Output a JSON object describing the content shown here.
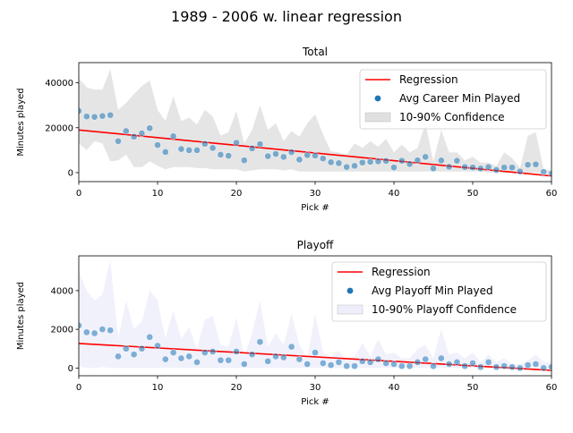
{
  "suptitle": "1989 - 2006 w. linear regression",
  "chart_data": [
    {
      "type": "scatter",
      "title": "Total",
      "xlabel": "Pick #",
      "ylabel": "Minutes played",
      "xlim": [
        0,
        60
      ],
      "ylim": [
        -4000,
        49000
      ],
      "xticks": [
        0,
        10,
        20,
        30,
        40,
        50,
        60
      ],
      "yticks": [
        0,
        20000,
        40000
      ],
      "ytick_labels": [
        "0",
        "20000",
        "40000"
      ],
      "grid": false,
      "legend_position": "upper-right",
      "colors": {
        "regression": "#ff0000",
        "points": "#1f77b4",
        "band": "#cccccc"
      },
      "regression": {
        "name": "Regression",
        "x": [
          0,
          60
        ],
        "y": [
          19000,
          -1500
        ]
      },
      "series": [
        {
          "name": "Avg Career Min Played",
          "x": [
            0,
            1,
            2,
            3,
            4,
            5,
            6,
            7,
            8,
            9,
            10,
            11,
            12,
            13,
            14,
            15,
            16,
            17,
            18,
            19,
            20,
            21,
            22,
            23,
            24,
            25,
            26,
            27,
            28,
            29,
            30,
            31,
            32,
            33,
            34,
            35,
            36,
            37,
            38,
            39,
            40,
            41,
            42,
            43,
            44,
            45,
            46,
            47,
            48,
            49,
            50,
            51,
            52,
            53,
            54,
            55,
            56,
            57,
            58,
            59,
            60
          ],
          "y": [
            27500,
            25000,
            24800,
            25200,
            25600,
            14000,
            18500,
            16000,
            17500,
            19800,
            12300,
            9200,
            16200,
            10500,
            10000,
            10000,
            12800,
            11000,
            8000,
            7500,
            13300,
            5500,
            10800,
            12700,
            7300,
            8300,
            7000,
            9100,
            5800,
            7800,
            7600,
            6300,
            4600,
            4200,
            2500,
            3000,
            4500,
            4800,
            5000,
            5200,
            2300,
            5300,
            3800,
            5500,
            7000,
            1900,
            5400,
            2600,
            5300,
            2500,
            2300,
            1800,
            2500,
            1200,
            2300,
            2300,
            500,
            3500,
            3700,
            300,
            -500
          ]
        }
      ],
      "band": {
        "name": "10-90% Confidence",
        "x": [
          0,
          1,
          2,
          3,
          4,
          5,
          6,
          7,
          8,
          9,
          10,
          11,
          12,
          13,
          14,
          15,
          16,
          17,
          18,
          19,
          20,
          21,
          22,
          23,
          24,
          25,
          26,
          27,
          28,
          29,
          30,
          31,
          32,
          33,
          34,
          35,
          36,
          37,
          38,
          39,
          40,
          41,
          42,
          43,
          44,
          45,
          46,
          47,
          48,
          49,
          50,
          51,
          52,
          53,
          54,
          55,
          56,
          57,
          58,
          59,
          60
        ],
        "upper": [
          42000,
          38000,
          37000,
          37000,
          46000,
          28000,
          31000,
          35000,
          38500,
          41000,
          28000,
          23000,
          34000,
          23000,
          24500,
          21500,
          28000,
          25000,
          16500,
          18000,
          27500,
          13000,
          19000,
          30000,
          19000,
          22000,
          14000,
          18500,
          16000,
          22000,
          26000,
          17000,
          9500,
          9000,
          8000,
          13000,
          11000,
          14000,
          11500,
          15000,
          9000,
          12500,
          9000,
          11000,
          22000,
          5000,
          19000,
          9000,
          9000,
          5500,
          7000,
          4500,
          4500,
          3000,
          9000,
          6500,
          2000,
          16500,
          18000,
          1500,
          1000
        ],
        "lower": [
          13000,
          10000,
          14000,
          13000,
          5000,
          5500,
          8000,
          2500,
          2500,
          5000,
          3000,
          1500,
          2500,
          2500,
          2500,
          2000,
          2000,
          1500,
          1500,
          1500,
          1500,
          500,
          1000,
          1500,
          1500,
          1500,
          1000,
          1500,
          500,
          500,
          500,
          500,
          500,
          500,
          500,
          500,
          500,
          500,
          500,
          500,
          500,
          500,
          500,
          500,
          500,
          500,
          500,
          500,
          500,
          500,
          500,
          500,
          0,
          0,
          0,
          0,
          0,
          0,
          0,
          0,
          -500
        ]
      }
    },
    {
      "type": "scatter",
      "title": "Playoff",
      "xlabel": "Pick #",
      "ylabel": "Minutes played",
      "xlim": [
        0,
        60
      ],
      "ylim": [
        -400,
        5800
      ],
      "xticks": [
        0,
        10,
        20,
        30,
        40,
        50,
        60
      ],
      "yticks": [
        0,
        2000,
        4000
      ],
      "ytick_labels": [
        "0",
        "2000",
        "4000"
      ],
      "grid": false,
      "legend_position": "upper-right",
      "colors": {
        "regression": "#ff0000",
        "points": "#1f77b4",
        "band": "#e0e0f8"
      },
      "regression": {
        "name": "Regression",
        "x": [
          0,
          60
        ],
        "y": [
          1270,
          -120
        ]
      },
      "series": [
        {
          "name": "Avg Playoff Min Played",
          "x": [
            0,
            1,
            2,
            3,
            4,
            5,
            6,
            7,
            8,
            9,
            10,
            11,
            12,
            13,
            14,
            15,
            16,
            17,
            18,
            19,
            20,
            21,
            22,
            23,
            24,
            25,
            26,
            27,
            28,
            29,
            30,
            31,
            32,
            33,
            34,
            35,
            36,
            37,
            38,
            39,
            40,
            41,
            42,
            43,
            44,
            45,
            46,
            47,
            48,
            49,
            50,
            51,
            52,
            53,
            54,
            55,
            56,
            57,
            58,
            59,
            60
          ],
          "y": [
            2200,
            1850,
            1800,
            2000,
            1950,
            600,
            1000,
            700,
            1000,
            1600,
            1150,
            450,
            800,
            500,
            600,
            300,
            800,
            850,
            400,
            400,
            850,
            200,
            700,
            1350,
            350,
            600,
            550,
            1100,
            450,
            200,
            800,
            250,
            150,
            300,
            100,
            100,
            350,
            300,
            450,
            250,
            200,
            100,
            100,
            300,
            450,
            100,
            500,
            200,
            300,
            100,
            250,
            50,
            300,
            50,
            100,
            50,
            0,
            150,
            200,
            0,
            50
          ]
        }
      ],
      "band": {
        "name": "10-90% Playoff Confidence",
        "x": [
          0,
          1,
          2,
          3,
          4,
          5,
          6,
          7,
          8,
          9,
          10,
          11,
          12,
          13,
          14,
          15,
          16,
          17,
          18,
          19,
          20,
          21,
          22,
          23,
          24,
          25,
          26,
          27,
          28,
          29,
          30,
          31,
          32,
          33,
          34,
          35,
          36,
          37,
          38,
          39,
          40,
          41,
          42,
          43,
          44,
          45,
          46,
          47,
          48,
          49,
          50,
          51,
          52,
          53,
          54,
          55,
          56,
          57,
          58,
          59,
          60
        ],
        "upper": [
          5000,
          4000,
          3500,
          3800,
          5600,
          1500,
          3500,
          2000,
          2400,
          4000,
          3500,
          1500,
          3000,
          1500,
          2100,
          1000,
          2500,
          2700,
          1200,
          1100,
          2600,
          600,
          1800,
          3500,
          1100,
          1800,
          1200,
          2800,
          1200,
          500,
          2800,
          800,
          600,
          900,
          400,
          600,
          1300,
          600,
          1500,
          700,
          800,
          500,
          500,
          1000,
          1200,
          500,
          2000,
          700,
          800,
          500,
          800,
          300,
          700,
          300,
          500,
          200,
          200,
          400,
          700,
          300,
          300
        ],
        "lower": [
          100,
          0,
          0,
          50,
          0,
          0,
          0,
          0,
          0,
          0,
          0,
          0,
          0,
          0,
          0,
          0,
          0,
          0,
          0,
          0,
          0,
          0,
          0,
          0,
          0,
          0,
          0,
          0,
          0,
          0,
          0,
          0,
          0,
          0,
          0,
          0,
          0,
          0,
          0,
          0,
          0,
          0,
          0,
          0,
          0,
          0,
          0,
          0,
          0,
          0,
          0,
          0,
          0,
          0,
          0,
          0,
          0,
          0,
          0,
          0,
          0
        ]
      }
    }
  ]
}
